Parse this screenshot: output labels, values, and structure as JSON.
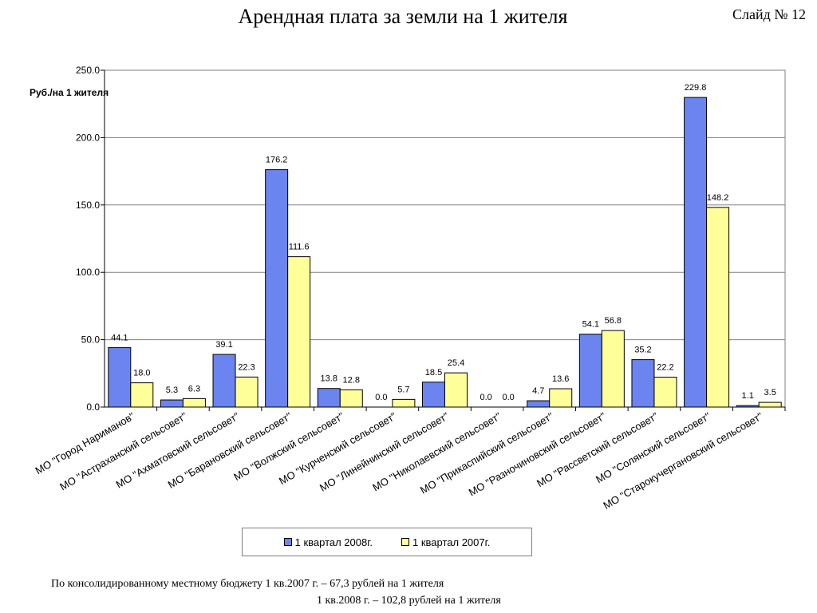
{
  "slide": {
    "title": "Арендная плата за земли на 1 жителя",
    "number_label": "Слайд № 12"
  },
  "chart_data": {
    "type": "bar",
    "ylabel": "Руб./на 1 жителя",
    "ylim": [
      0,
      250
    ],
    "yticks": [
      "0.0",
      "50.0",
      "100.0",
      "150.0",
      "200.0",
      "250.0"
    ],
    "grid": true,
    "legend_position": "bottom",
    "categories": [
      "МО \"Город Нариманов\"",
      "МО \"Астраханский сельсовет\"",
      "МО \"Ахматовский сельсовет\"",
      "МО \"Барановский сельсовет\"",
      "МО \"Волжский сельсовет\"",
      "МО \"Курченский сельсовет\"",
      "МО \"Линейнинский сельсовет\"",
      "МО \"Николаевский сельсовет\"",
      "МО \"Прикаспийский сельсовет\"",
      "МО \"Разночиновский сельсовет\"",
      "МО \"Рассветский сельсовет\"",
      "МО \"Солянский сельсовет\"",
      "МО \"Старокучергановский сельсовет\""
    ],
    "series": [
      {
        "name": "1 квартал 2008г.",
        "color": "#6b84f0",
        "values": [
          44.1,
          5.3,
          39.1,
          176.2,
          13.8,
          0.0,
          18.5,
          0.0,
          4.7,
          54.1,
          35.2,
          229.8,
          1.1
        ],
        "labels": [
          "44.1",
          "5.3",
          "39.1",
          "176.2",
          "13.8",
          "0.0",
          "18.5",
          "0.0",
          "4.7",
          "54.1",
          "35.2",
          "229.8",
          "1.1"
        ]
      },
      {
        "name": "1 квартал 2007г.",
        "color": "#ffff99",
        "values": [
          18.0,
          6.3,
          22.3,
          111.6,
          12.8,
          5.7,
          25.4,
          0.0,
          13.6,
          56.8,
          22.2,
          148.2,
          3.5
        ],
        "labels": [
          "18.0",
          "6.3",
          "22.3",
          "111.6",
          "12.8",
          "5.7",
          "25.4",
          "0.0",
          "13.6",
          "56.8",
          "22.2",
          "148.2",
          "3.5"
        ]
      }
    ]
  },
  "footnote": {
    "line1": "По консолидированному местному бюджету 1 кв.2007 г.  – 67,3 рублей на 1 жителя",
    "line2": "1 кв.2008 г. – 102,8 рублей на 1 жителя"
  }
}
